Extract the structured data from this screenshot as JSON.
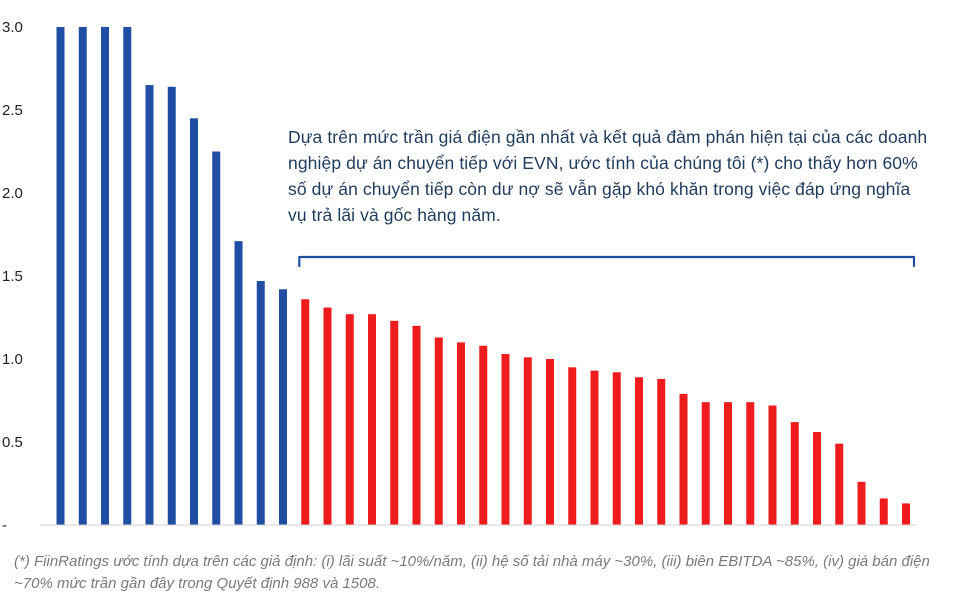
{
  "chart_data": {
    "type": "bar",
    "yticks": [
      "-",
      "0.5",
      "1.0",
      "1.5",
      "2.0",
      "2.5",
      "3.0"
    ],
    "ylim": [
      0,
      3.0
    ],
    "grid": false,
    "series": [
      {
        "color": "#1f4ea3",
        "values": [
          3.0,
          3.0,
          3.0,
          3.0,
          2.65,
          2.64,
          2.45,
          2.25,
          1.71,
          1.47,
          1.42
        ]
      },
      {
        "color": "#ee1c1c",
        "values": [
          1.36,
          1.31,
          1.27,
          1.27,
          1.23,
          1.2,
          1.13,
          1.1,
          1.08,
          1.03,
          1.01,
          1.0,
          0.95,
          0.93,
          0.92,
          0.89,
          0.88,
          0.79,
          0.74,
          0.74,
          0.74,
          0.72,
          0.62,
          0.56,
          0.49,
          0.26,
          0.16,
          0.13
        ]
      }
    ],
    "bracket_color": "#1f4ea3",
    "annotation": "Dựa trên mức trần giá điện gần nhất và kết quả đàm phán hiện tại của các doanh nghiệp dự án chuyển tiếp với EVN, ước tính của chúng tôi (*) cho thấy hơn 60% số dự án chuyển tiếp còn dư nợ sẽ vẫn gặp khó khăn trong việc đáp ứng nghĩa vụ trả lãi và gốc hàng năm."
  },
  "footnote": "(*) FiinRatings ước tính dựa trên các giả định: (i) lãi suất ~10%/năm, (ii) hệ số tải nhà máy ~30%, (iii) biên EBITDA ~85%, (iv) giá bán điện ~70% mức trần gần đây trong Quyết định 988 và 1508."
}
